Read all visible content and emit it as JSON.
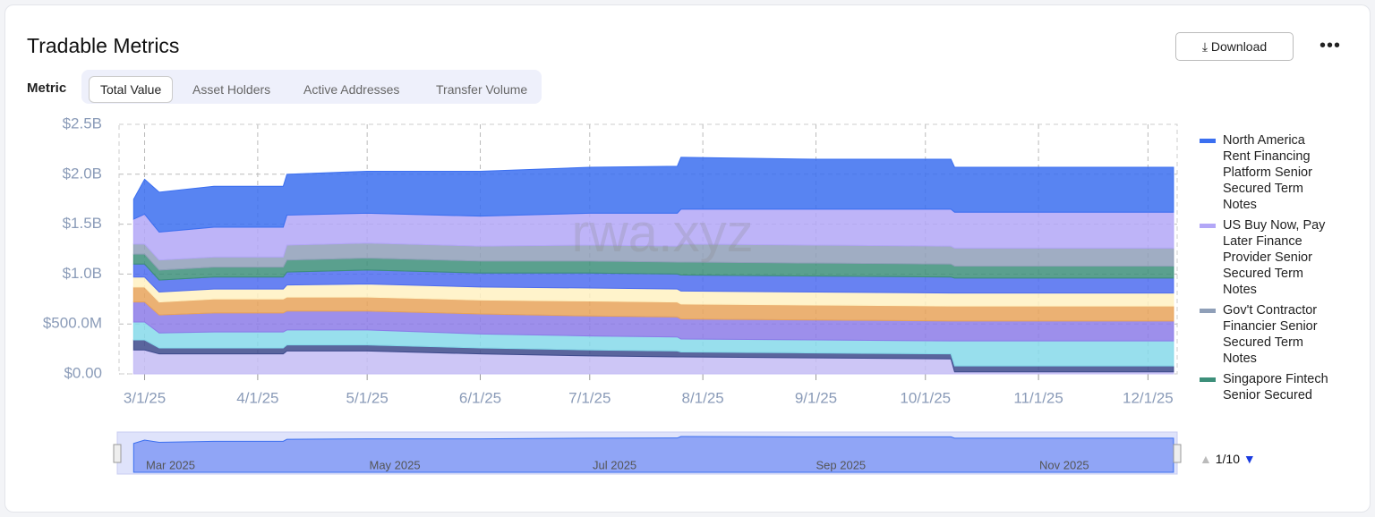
{
  "header": {
    "title": "Tradable Metrics",
    "download": "Download",
    "metric_label": "Metric",
    "tabs": [
      "Total Value",
      "Asset Holders",
      "Active Addresses",
      "Transfer Volume"
    ]
  },
  "watermark": "rwa.xyz",
  "chart_data": {
    "type": "area",
    "stacked": true,
    "x": [
      "2/26/25",
      "3/1/25",
      "3/5/25",
      "3/20/25",
      "4/8/25",
      "4/9/25",
      "5/1/25",
      "6/1/25",
      "7/1/25",
      "7/25/25",
      "7/26/25",
      "9/1/25",
      "10/8/25",
      "10/9/25",
      "12/8/25"
    ],
    "xlim": [
      "2/22/25",
      "12/9/25"
    ],
    "xticks": [
      "3/1/25",
      "4/1/25",
      "5/1/25",
      "6/1/25",
      "7/1/25",
      "8/1/25",
      "9/1/25",
      "10/1/25",
      "11/1/25",
      "12/1/25"
    ],
    "ylim": [
      0,
      2500000000
    ],
    "yticks": [
      {
        "value": 0,
        "label": "$0.00"
      },
      {
        "value": 500000000,
        "label": "$500.0M"
      },
      {
        "value": 1000000000,
        "label": "$1.0B"
      },
      {
        "value": 1500000000,
        "label": "$1.5B"
      },
      {
        "value": 2000000000,
        "label": "$2.0B"
      },
      {
        "value": 2500000000,
        "label": "$2.5B"
      }
    ],
    "grid": true,
    "series": [
      {
        "color": "#c4bcf5",
        "values": [
          240000000,
          240000000,
          200000000,
          200000000,
          200000000,
          230000000,
          230000000,
          200000000,
          180000000,
          170000000,
          170000000,
          160000000,
          150000000,
          20000000,
          20000000
        ]
      },
      {
        "color": "#3d4a8c",
        "values": [
          100000000,
          100000000,
          60000000,
          60000000,
          60000000,
          60000000,
          60000000,
          60000000,
          60000000,
          60000000,
          50000000,
          50000000,
          50000000,
          60000000,
          60000000
        ]
      },
      {
        "color": "#86d9ea",
        "values": [
          180000000,
          180000000,
          150000000,
          160000000,
          160000000,
          150000000,
          150000000,
          140000000,
          140000000,
          140000000,
          130000000,
          130000000,
          130000000,
          250000000,
          250000000
        ]
      },
      {
        "color": "#8c7be8",
        "values": [
          200000000,
          200000000,
          180000000,
          190000000,
          190000000,
          190000000,
          190000000,
          200000000,
          200000000,
          200000000,
          200000000,
          200000000,
          200000000,
          200000000,
          200000000
        ]
      },
      {
        "color": "#e8a35a",
        "values": [
          150000000,
          150000000,
          130000000,
          140000000,
          140000000,
          140000000,
          140000000,
          140000000,
          150000000,
          150000000,
          150000000,
          150000000,
          150000000,
          150000000,
          150000000
        ]
      },
      {
        "color": "#fff1c2",
        "values": [
          100000000,
          100000000,
          100000000,
          100000000,
          100000000,
          120000000,
          130000000,
          130000000,
          130000000,
          130000000,
          130000000,
          130000000,
          130000000,
          130000000,
          130000000
        ]
      },
      {
        "color": "#4d6cf0",
        "values": [
          130000000,
          130000000,
          120000000,
          120000000,
          120000000,
          130000000,
          140000000,
          140000000,
          150000000,
          150000000,
          160000000,
          160000000,
          160000000,
          150000000,
          150000000
        ]
      },
      {
        "name": "Singapore Fintech Senior Secured",
        "color": "#3d8f7a",
        "values": [
          100000000,
          100000000,
          100000000,
          100000000,
          100000000,
          120000000,
          120000000,
          120000000,
          120000000,
          120000000,
          130000000,
          130000000,
          130000000,
          120000000,
          120000000
        ]
      },
      {
        "name": "Gov't Contractor Financier Senior Secured Term Notes",
        "color": "#8f9fb8",
        "values": [
          100000000,
          100000000,
          100000000,
          100000000,
          100000000,
          150000000,
          150000000,
          150000000,
          160000000,
          160000000,
          180000000,
          180000000,
          180000000,
          180000000,
          180000000
        ]
      },
      {
        "name": "US Buy Now, Pay Later Finance Provider Senior Secured Term Notes",
        "color": "#b3a7f7",
        "values": [
          250000000,
          300000000,
          280000000,
          300000000,
          300000000,
          300000000,
          300000000,
          300000000,
          320000000,
          330000000,
          350000000,
          360000000,
          370000000,
          360000000,
          360000000
        ]
      },
      {
        "name": "North America Rent Financing Platform Senior Secured Term Notes",
        "color": "#3b6ff0",
        "values": [
          200000000,
          350000000,
          400000000,
          410000000,
          410000000,
          410000000,
          420000000,
          450000000,
          460000000,
          470000000,
          520000000,
          500000000,
          500000000,
          450000000,
          450000000
        ]
      }
    ]
  },
  "navigator": {
    "labels": [
      "Mar 2025",
      "May 2025",
      "Jul 2025",
      "Sep 2025",
      "Nov 2025"
    ]
  },
  "legend_pager": "1/10"
}
